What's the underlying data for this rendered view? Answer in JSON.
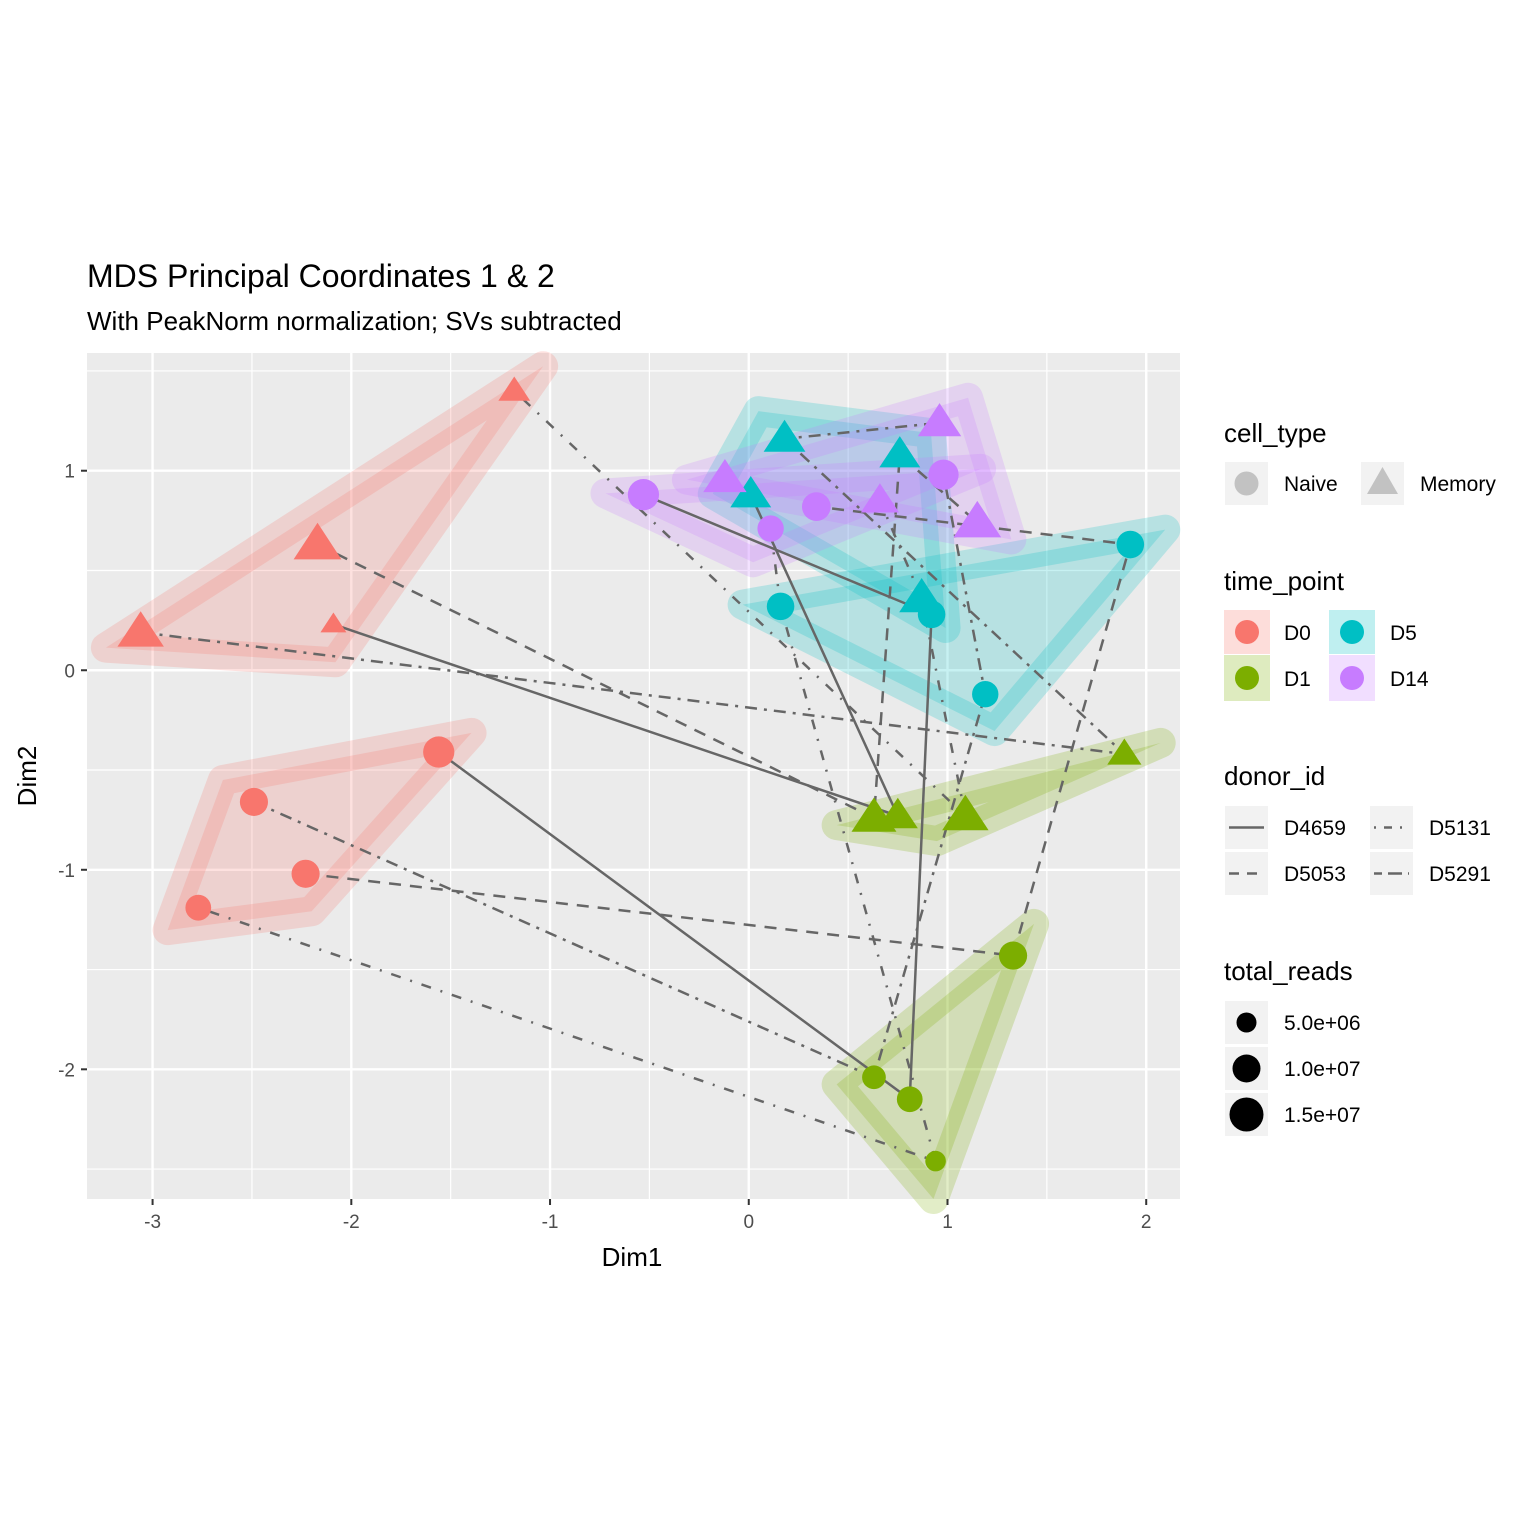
{
  "chart_data": {
    "type": "scatter",
    "title": "MDS Principal Coordinates 1 & 2",
    "subtitle": "With PeakNorm normalization; SVs subtracted",
    "xlabel": "Dim1",
    "ylabel": "Dim2",
    "xlim": [
      -3.33,
      2.17
    ],
    "ylim": [
      -2.65,
      1.59
    ],
    "xticks": [
      -3,
      -2,
      -1,
      0,
      1,
      2
    ],
    "yticks": [
      -2,
      -1,
      0,
      1
    ],
    "grid": true,
    "colors": {
      "D0": "#f8766d",
      "D1": "#7cae00",
      "D5": "#00bfc4",
      "D14": "#c77cff"
    },
    "hull_fill": {
      "D0": "#f8766d",
      "D1": "#7cae00",
      "D5": "#00bfc4",
      "D14": "#c77cff"
    },
    "points": [
      {
        "id": "p1",
        "x": -3.06,
        "y": 0.19,
        "cell_type": "Memory",
        "time_point": "D0",
        "donor_id": "D5291",
        "total_reads": 12000000.0
      },
      {
        "id": "p2",
        "x": -2.17,
        "y": 0.63,
        "cell_type": "Memory",
        "time_point": "D0",
        "donor_id": "D5053",
        "total_reads": 13000000.0
      },
      {
        "id": "p3",
        "x": -2.09,
        "y": 0.23,
        "cell_type": "Memory",
        "time_point": "D0",
        "donor_id": "D4659",
        "total_reads": 2000000.0
      },
      {
        "id": "p4",
        "x": -1.18,
        "y": 1.4,
        "cell_type": "Memory",
        "time_point": "D0",
        "donor_id": "D5131",
        "total_reads": 4000000.0
      },
      {
        "id": "p5",
        "x": -1.56,
        "y": -0.41,
        "cell_type": "Naive",
        "time_point": "D0",
        "donor_id": "D4659",
        "total_reads": 12000000.0
      },
      {
        "id": "p6",
        "x": -2.49,
        "y": -0.66,
        "cell_type": "Naive",
        "time_point": "D0",
        "donor_id": "D5291",
        "total_reads": 9000000.0
      },
      {
        "id": "p7",
        "x": -2.23,
        "y": -1.02,
        "cell_type": "Naive",
        "time_point": "D0",
        "donor_id": "D5053",
        "total_reads": 9000000.0
      },
      {
        "id": "p8",
        "x": -2.77,
        "y": -1.19,
        "cell_type": "Naive",
        "time_point": "D0",
        "donor_id": "D5131",
        "total_reads": 7000000.0
      },
      {
        "id": "p9",
        "x": 0.63,
        "y": -0.74,
        "cell_type": "Memory",
        "time_point": "D1",
        "donor_id": "D5053",
        "total_reads": 11000000.0
      },
      {
        "id": "p10",
        "x": 0.75,
        "y": -0.73,
        "cell_type": "Memory",
        "time_point": "D1",
        "donor_id": "D4659",
        "total_reads": 8000000.0
      },
      {
        "id": "p11",
        "x": 1.09,
        "y": -0.73,
        "cell_type": "Memory",
        "time_point": "D1",
        "donor_id": "D5131",
        "total_reads": 12000000.0
      },
      {
        "id": "p12",
        "x": 1.89,
        "y": -0.42,
        "cell_type": "Memory",
        "time_point": "D1",
        "donor_id": "D5291",
        "total_reads": 5000000.0
      },
      {
        "id": "p13",
        "x": 1.33,
        "y": -1.43,
        "cell_type": "Naive",
        "time_point": "D1",
        "donor_id": "D5053",
        "total_reads": 9000000.0
      },
      {
        "id": "p14",
        "x": 0.63,
        "y": -2.04,
        "cell_type": "Naive",
        "time_point": "D1",
        "donor_id": "D5291",
        "total_reads": 5500000.0
      },
      {
        "id": "p15",
        "x": 0.81,
        "y": -2.15,
        "cell_type": "Naive",
        "time_point": "D1",
        "donor_id": "D4659",
        "total_reads": 7000000.0
      },
      {
        "id": "p16",
        "x": 0.94,
        "y": -2.46,
        "cell_type": "Naive",
        "time_point": "D1",
        "donor_id": "D5131",
        "total_reads": 3500000.0
      },
      {
        "id": "p17",
        "x": 0.18,
        "y": 1.16,
        "cell_type": "Memory",
        "time_point": "D5",
        "donor_id": "D5291",
        "total_reads": 9000000.0
      },
      {
        "id": "p18",
        "x": 0.01,
        "y": 0.88,
        "cell_type": "Memory",
        "time_point": "D5",
        "donor_id": "D4659",
        "total_reads": 8500000.0
      },
      {
        "id": "p19",
        "x": 0.76,
        "y": 1.08,
        "cell_type": "Memory",
        "time_point": "D5",
        "donor_id": "D5053",
        "total_reads": 8500000.0
      },
      {
        "id": "p20",
        "x": 0.87,
        "y": 0.36,
        "cell_type": "Memory",
        "time_point": "D5",
        "donor_id": "D5131",
        "total_reads": 11000000.0
      },
      {
        "id": "p21",
        "x": 0.16,
        "y": 0.32,
        "cell_type": "Naive",
        "time_point": "D5",
        "donor_id": "D5131",
        "total_reads": 8500000.0
      },
      {
        "id": "p22",
        "x": 0.92,
        "y": 0.28,
        "cell_type": "Naive",
        "time_point": "D5",
        "donor_id": "D4659",
        "total_reads": 8500000.0
      },
      {
        "id": "p23",
        "x": 1.19,
        "y": -0.12,
        "cell_type": "Naive",
        "time_point": "D5",
        "donor_id": "D5291",
        "total_reads": 7500000.0
      },
      {
        "id": "p24",
        "x": 1.92,
        "y": 0.63,
        "cell_type": "Naive",
        "time_point": "D5",
        "donor_id": "D5053",
        "total_reads": 8500000.0
      },
      {
        "id": "p25",
        "x": -0.12,
        "y": 0.96,
        "cell_type": "Memory",
        "time_point": "D14",
        "donor_id": "D4659",
        "total_reads": 10000000.0
      },
      {
        "id": "p26",
        "x": 0.96,
        "y": 1.24,
        "cell_type": "Memory",
        "time_point": "D14",
        "donor_id": "D5291",
        "total_reads": 10000000.0
      },
      {
        "id": "p27",
        "x": 0.66,
        "y": 0.85,
        "cell_type": "Memory",
        "time_point": "D14",
        "donor_id": "D5131",
        "total_reads": 7000000.0
      },
      {
        "id": "p28",
        "x": 1.15,
        "y": 0.74,
        "cell_type": "Memory",
        "time_point": "D14",
        "donor_id": "D5053",
        "total_reads": 13000000.0
      },
      {
        "id": "p29",
        "x": -0.53,
        "y": 0.88,
        "cell_type": "Naive",
        "time_point": "D14",
        "donor_id": "D4659",
        "total_reads": 12000000.0
      },
      {
        "id": "p30",
        "x": 0.11,
        "y": 0.71,
        "cell_type": "Naive",
        "time_point": "D14",
        "donor_id": "D5131",
        "total_reads": 7500000.0
      },
      {
        "id": "p31",
        "x": 0.34,
        "y": 0.82,
        "cell_type": "Naive",
        "time_point": "D14",
        "donor_id": "D5053",
        "total_reads": 9500000.0
      },
      {
        "id": "p32",
        "x": 0.98,
        "y": 0.98,
        "cell_type": "Naive",
        "time_point": "D14",
        "donor_id": "D5291",
        "total_reads": 11000000.0
      }
    ],
    "paths": [
      {
        "donor_id": "D4659",
        "cell_type": "Memory",
        "points": [
          "p3",
          "p10",
          "p18",
          "p25"
        ]
      },
      {
        "donor_id": "D4659",
        "cell_type": "Naive",
        "points": [
          "p5",
          "p15",
          "p22",
          "p29"
        ]
      },
      {
        "donor_id": "D5053",
        "cell_type": "Memory",
        "points": [
          "p2",
          "p9",
          "p19",
          "p28"
        ]
      },
      {
        "donor_id": "D5053",
        "cell_type": "Naive",
        "points": [
          "p7",
          "p13",
          "p24",
          "p31"
        ]
      },
      {
        "donor_id": "D5131",
        "cell_type": "Memory",
        "points": [
          "p4",
          "p11",
          "p20",
          "p27"
        ]
      },
      {
        "donor_id": "D5131",
        "cell_type": "Naive",
        "points": [
          "p8",
          "p16",
          "p21",
          "p30"
        ]
      },
      {
        "donor_id": "D5291",
        "cell_type": "Memory",
        "points": [
          "p1",
          "p12",
          "p17",
          "p26"
        ]
      },
      {
        "donor_id": "D5291",
        "cell_type": "Naive",
        "points": [
          "p6",
          "p14",
          "p23",
          "p32"
        ]
      }
    ],
    "line_types": {
      "D4659": "solid",
      "D5053": "dashed",
      "D5131": "dotdash-sparse",
      "D5291": "dotdash"
    },
    "legends": {
      "cell_type": {
        "title": "cell_type",
        "items": [
          {
            "label": "Naive",
            "shape": "circle"
          },
          {
            "label": "Memory",
            "shape": "triangle"
          }
        ]
      },
      "time_point": {
        "title": "time_point",
        "items": [
          {
            "label": "D0"
          },
          {
            "label": "D5"
          },
          {
            "label": "D1"
          },
          {
            "label": "D14"
          }
        ]
      },
      "donor_id": {
        "title": "donor_id",
        "items": [
          {
            "label": "D4659"
          },
          {
            "label": "D5131"
          },
          {
            "label": "D5053"
          },
          {
            "label": "D5291"
          }
        ]
      },
      "total_reads": {
        "title": "total_reads",
        "items": [
          {
            "label": "5.0e+06",
            "value": 5000000.0
          },
          {
            "label": "1.0e+07",
            "value": 10000000.0
          },
          {
            "label": "1.5e+07",
            "value": 15000000.0
          }
        ]
      }
    },
    "legend_position": "right"
  }
}
